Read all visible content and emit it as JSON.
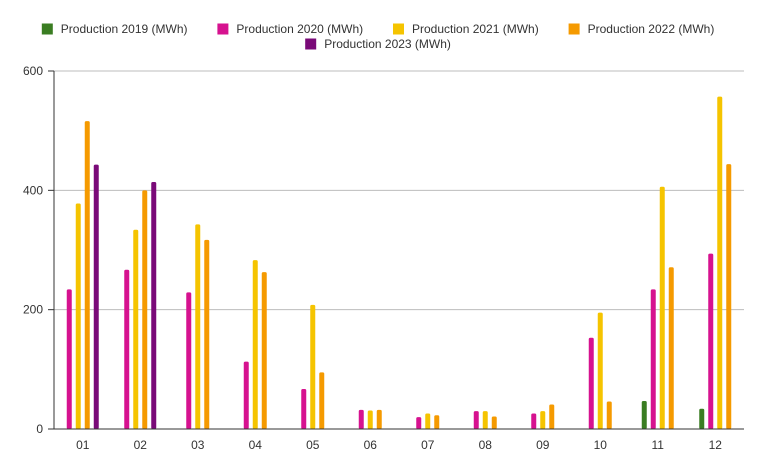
{
  "chart_data": {
    "type": "bar",
    "categories": [
      "01",
      "02",
      "03",
      "04",
      "05",
      "06",
      "07",
      "08",
      "09",
      "10",
      "11",
      "12"
    ],
    "series": [
      {
        "name": "Production 2019 (MWh)",
        "color": "#3a7d22",
        "values": [
          null,
          null,
          null,
          null,
          null,
          null,
          null,
          null,
          null,
          null,
          47,
          34
        ]
      },
      {
        "name": "Production 2020 (MWh)",
        "color": "#d6128f",
        "values": [
          234,
          267,
          229,
          113,
          67,
          32,
          20,
          30,
          26,
          153,
          234,
          294
        ]
      },
      {
        "name": "Production 2021 (MWh)",
        "color": "#f5c400",
        "values": [
          378,
          334,
          343,
          283,
          208,
          31,
          26,
          30,
          30,
          195,
          406,
          557
        ]
      },
      {
        "name": "Production 2022 (MWh)",
        "color": "#f59a00",
        "values": [
          516,
          400,
          317,
          263,
          95,
          32,
          23,
          21,
          41,
          46,
          271,
          444
        ]
      },
      {
        "name": "Production 2023 (MWh)",
        "color": "#7a0a78",
        "values": [
          443,
          414,
          null,
          null,
          null,
          null,
          null,
          null,
          null,
          null,
          null,
          null
        ]
      }
    ],
    "y_ticks": [
      "0",
      "200",
      "400",
      "600"
    ],
    "ylim": [
      0,
      600
    ],
    "grid": true,
    "legend_position": "top-center"
  }
}
